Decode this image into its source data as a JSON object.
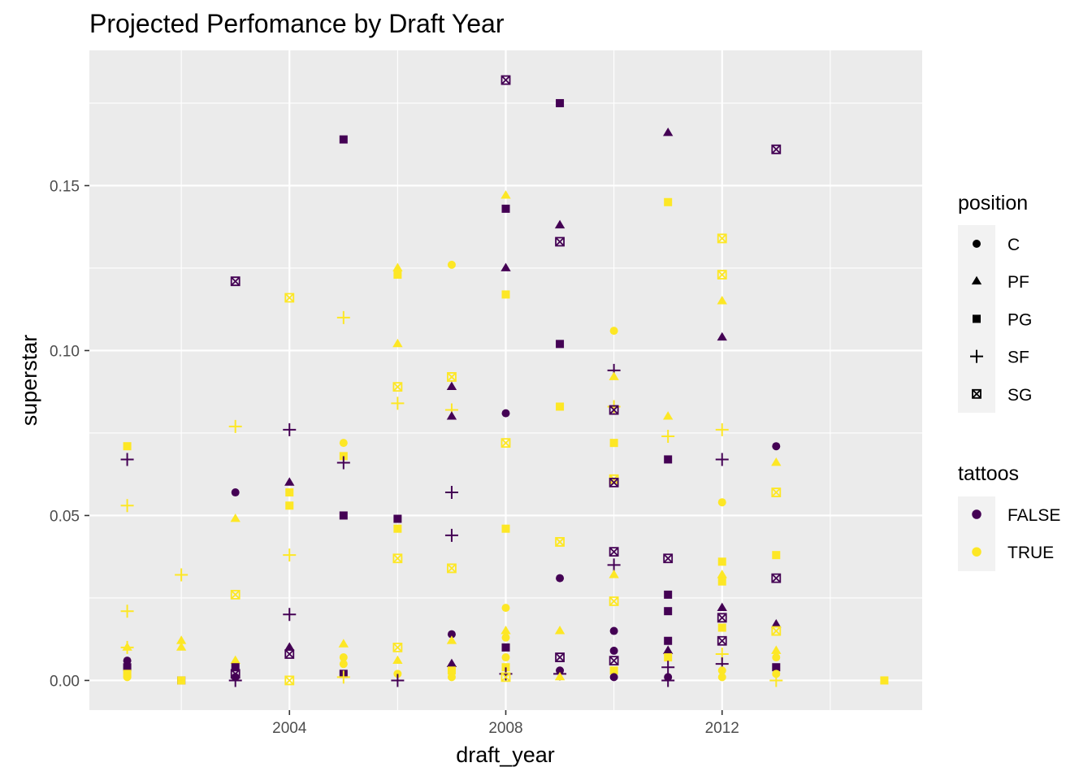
{
  "chart_data": {
    "type": "scatter",
    "title": "Projected Perfomance by Draft Year",
    "xlabel": "draft_year",
    "ylabel": "superstar",
    "xlim": [
      2000.3,
      2015.7
    ],
    "ylim": [
      -0.009,
      0.191
    ],
    "x_ticks": [
      2004,
      2008,
      2012
    ],
    "x_tick_labels": [
      "2004",
      "2008",
      "2012"
    ],
    "x_minor_ticks": [
      2002,
      2006,
      2010,
      2014
    ],
    "y_ticks": [
      0.0,
      0.05,
      0.1,
      0.15
    ],
    "y_tick_labels": [
      "0.00",
      "0.05",
      "0.10",
      "0.15"
    ],
    "y_minor_ticks": [
      0.025,
      0.075,
      0.125,
      0.175
    ],
    "grid": true,
    "background": "#ebebeb",
    "legends": [
      {
        "title": "position",
        "placement": "right",
        "items": [
          {
            "label": "C",
            "shape": "circle"
          },
          {
            "label": "PF",
            "shape": "triangle"
          },
          {
            "label": "PG",
            "shape": "square"
          },
          {
            "label": "SF",
            "shape": "plus"
          },
          {
            "label": "SG",
            "shape": "square-x"
          }
        ]
      },
      {
        "title": "tattoos",
        "placement": "right",
        "items": [
          {
            "label": "FALSE",
            "color": "#440154"
          },
          {
            "label": "TRUE",
            "color": "#fde725"
          }
        ]
      }
    ],
    "colors": {
      "FALSE": "#440154",
      "TRUE": "#fde725"
    },
    "points": [
      [
        2001,
        0.071,
        "PG",
        "TRUE"
      ],
      [
        2001,
        0.067,
        "SF",
        "FALSE"
      ],
      [
        2001,
        0.053,
        "SF",
        "TRUE"
      ],
      [
        2001,
        0.021,
        "SF",
        "TRUE"
      ],
      [
        2001,
        0.01,
        "PF",
        "TRUE"
      ],
      [
        2001,
        0.01,
        "SF",
        "TRUE"
      ],
      [
        2001,
        0.006,
        "C",
        "FALSE"
      ],
      [
        2001,
        0.004,
        "PG",
        "FALSE"
      ],
      [
        2001,
        0.002,
        "PG",
        "TRUE"
      ],
      [
        2001,
        0.001,
        "C",
        "TRUE"
      ],
      [
        2002,
        0.032,
        "SF",
        "TRUE"
      ],
      [
        2002,
        0.012,
        "PF",
        "TRUE"
      ],
      [
        2002,
        0.01,
        "PF",
        "TRUE"
      ],
      [
        2002,
        0.0,
        "PG",
        "FALSE"
      ],
      [
        2002,
        0.0,
        "PG",
        "TRUE"
      ],
      [
        2003,
        0.121,
        "SG",
        "FALSE"
      ],
      [
        2003,
        0.077,
        "SF",
        "TRUE"
      ],
      [
        2003,
        0.057,
        "C",
        "FALSE"
      ],
      [
        2003,
        0.049,
        "PF",
        "TRUE"
      ],
      [
        2003,
        0.026,
        "SG",
        "TRUE"
      ],
      [
        2003,
        0.006,
        "PF",
        "TRUE"
      ],
      [
        2003,
        0.004,
        "PG",
        "FALSE"
      ],
      [
        2003,
        0.002,
        "SG",
        "FALSE"
      ],
      [
        2003,
        0.001,
        "C",
        "FALSE"
      ],
      [
        2003,
        0.0,
        "SF",
        "FALSE"
      ],
      [
        2004,
        0.116,
        "SG",
        "TRUE"
      ],
      [
        2004,
        0.076,
        "SF",
        "FALSE"
      ],
      [
        2004,
        0.06,
        "PF",
        "FALSE"
      ],
      [
        2004,
        0.057,
        "PG",
        "TRUE"
      ],
      [
        2004,
        0.053,
        "PG",
        "TRUE"
      ],
      [
        2004,
        0.038,
        "SF",
        "TRUE"
      ],
      [
        2004,
        0.02,
        "SF",
        "FALSE"
      ],
      [
        2004,
        0.01,
        "PF",
        "FALSE"
      ],
      [
        2004,
        0.008,
        "SG",
        "FALSE"
      ],
      [
        2004,
        0.0,
        "SG",
        "TRUE"
      ],
      [
        2005,
        0.164,
        "PG",
        "FALSE"
      ],
      [
        2005,
        0.11,
        "SF",
        "TRUE"
      ],
      [
        2005,
        0.072,
        "C",
        "TRUE"
      ],
      [
        2005,
        0.068,
        "PG",
        "TRUE"
      ],
      [
        2005,
        0.066,
        "SF",
        "FALSE"
      ],
      [
        2005,
        0.05,
        "PG",
        "FALSE"
      ],
      [
        2005,
        0.011,
        "PF",
        "TRUE"
      ],
      [
        2005,
        0.007,
        "C",
        "TRUE"
      ],
      [
        2005,
        0.005,
        "C",
        "TRUE"
      ],
      [
        2005,
        0.002,
        "PG",
        "FALSE"
      ],
      [
        2005,
        0.001,
        "SF",
        "TRUE"
      ],
      [
        2006,
        0.125,
        "PF",
        "TRUE"
      ],
      [
        2006,
        0.123,
        "PG",
        "TRUE"
      ],
      [
        2006,
        0.102,
        "PF",
        "TRUE"
      ],
      [
        2006,
        0.089,
        "SG",
        "TRUE"
      ],
      [
        2006,
        0.084,
        "SF",
        "TRUE"
      ],
      [
        2006,
        0.049,
        "PG",
        "FALSE"
      ],
      [
        2006,
        0.046,
        "PG",
        "TRUE"
      ],
      [
        2006,
        0.037,
        "SG",
        "TRUE"
      ],
      [
        2006,
        0.01,
        "SG",
        "TRUE"
      ],
      [
        2006,
        0.006,
        "PF",
        "TRUE"
      ],
      [
        2006,
        0.002,
        "C",
        "TRUE"
      ],
      [
        2006,
        0.0,
        "SF",
        "FALSE"
      ],
      [
        2007,
        0.126,
        "C",
        "TRUE"
      ],
      [
        2007,
        0.092,
        "SG",
        "TRUE"
      ],
      [
        2007,
        0.089,
        "PF",
        "FALSE"
      ],
      [
        2007,
        0.082,
        "SF",
        "TRUE"
      ],
      [
        2007,
        0.08,
        "PF",
        "FALSE"
      ],
      [
        2007,
        0.057,
        "SF",
        "FALSE"
      ],
      [
        2007,
        0.044,
        "SF",
        "FALSE"
      ],
      [
        2007,
        0.034,
        "SG",
        "TRUE"
      ],
      [
        2007,
        0.014,
        "C",
        "FALSE"
      ],
      [
        2007,
        0.012,
        "PF",
        "TRUE"
      ],
      [
        2007,
        0.005,
        "PF",
        "FALSE"
      ],
      [
        2007,
        0.003,
        "PG",
        "TRUE"
      ],
      [
        2007,
        0.001,
        "C",
        "TRUE"
      ],
      [
        2008,
        0.182,
        "SG",
        "FALSE"
      ],
      [
        2008,
        0.147,
        "PF",
        "TRUE"
      ],
      [
        2008,
        0.143,
        "PG",
        "FALSE"
      ],
      [
        2008,
        0.125,
        "PF",
        "FALSE"
      ],
      [
        2008,
        0.117,
        "PG",
        "TRUE"
      ],
      [
        2008,
        0.081,
        "C",
        "FALSE"
      ],
      [
        2008,
        0.072,
        "SG",
        "TRUE"
      ],
      [
        2008,
        0.046,
        "PG",
        "TRUE"
      ],
      [
        2008,
        0.022,
        "C",
        "TRUE"
      ],
      [
        2008,
        0.015,
        "PF",
        "TRUE"
      ],
      [
        2008,
        0.013,
        "C",
        "TRUE"
      ],
      [
        2008,
        0.01,
        "PG",
        "FALSE"
      ],
      [
        2008,
        0.007,
        "C",
        "TRUE"
      ],
      [
        2008,
        0.004,
        "PG",
        "TRUE"
      ],
      [
        2008,
        0.002,
        "SF",
        "FALSE"
      ],
      [
        2008,
        0.001,
        "SG",
        "TRUE"
      ],
      [
        2009,
        0.175,
        "PG",
        "FALSE"
      ],
      [
        2009,
        0.138,
        "PF",
        "FALSE"
      ],
      [
        2009,
        0.133,
        "SG",
        "FALSE"
      ],
      [
        2009,
        0.102,
        "PG",
        "FALSE"
      ],
      [
        2009,
        0.083,
        "PG",
        "TRUE"
      ],
      [
        2009,
        0.042,
        "SG",
        "TRUE"
      ],
      [
        2009,
        0.031,
        "C",
        "FALSE"
      ],
      [
        2009,
        0.015,
        "PF",
        "TRUE"
      ],
      [
        2009,
        0.007,
        "SG",
        "FALSE"
      ],
      [
        2009,
        0.003,
        "C",
        "FALSE"
      ],
      [
        2009,
        0.002,
        "SF",
        "FALSE"
      ],
      [
        2009,
        0.001,
        "PF",
        "TRUE"
      ],
      [
        2010,
        0.106,
        "C",
        "TRUE"
      ],
      [
        2010,
        0.094,
        "SF",
        "FALSE"
      ],
      [
        2010,
        0.092,
        "PF",
        "TRUE"
      ],
      [
        2010,
        0.083,
        "SF",
        "TRUE"
      ],
      [
        2010,
        0.082,
        "SG",
        "FALSE"
      ],
      [
        2010,
        0.072,
        "PG",
        "TRUE"
      ],
      [
        2010,
        0.061,
        "SG",
        "TRUE"
      ],
      [
        2010,
        0.06,
        "SG",
        "FALSE"
      ],
      [
        2010,
        0.039,
        "SG",
        "FALSE"
      ],
      [
        2010,
        0.035,
        "SF",
        "FALSE"
      ],
      [
        2010,
        0.032,
        "PF",
        "TRUE"
      ],
      [
        2010,
        0.024,
        "SG",
        "TRUE"
      ],
      [
        2010,
        0.015,
        "C",
        "FALSE"
      ],
      [
        2010,
        0.009,
        "C",
        "FALSE"
      ],
      [
        2010,
        0.006,
        "SG",
        "FALSE"
      ],
      [
        2010,
        0.003,
        "PG",
        "TRUE"
      ],
      [
        2010,
        0.001,
        "C",
        "FALSE"
      ],
      [
        2011,
        0.166,
        "PF",
        "FALSE"
      ],
      [
        2011,
        0.145,
        "PG",
        "TRUE"
      ],
      [
        2011,
        0.08,
        "PF",
        "TRUE"
      ],
      [
        2011,
        0.074,
        "SF",
        "TRUE"
      ],
      [
        2011,
        0.067,
        "PG",
        "FALSE"
      ],
      [
        2011,
        0.037,
        "SG",
        "FALSE"
      ],
      [
        2011,
        0.026,
        "PG",
        "FALSE"
      ],
      [
        2011,
        0.021,
        "PG",
        "FALSE"
      ],
      [
        2011,
        0.012,
        "PG",
        "FALSE"
      ],
      [
        2011,
        0.009,
        "PF",
        "FALSE"
      ],
      [
        2011,
        0.007,
        "PG",
        "TRUE"
      ],
      [
        2011,
        0.004,
        "SF",
        "FALSE"
      ],
      [
        2011,
        0.001,
        "C",
        "FALSE"
      ],
      [
        2011,
        0.0,
        "SF",
        "FALSE"
      ],
      [
        2012,
        0.134,
        "SG",
        "TRUE"
      ],
      [
        2012,
        0.123,
        "SG",
        "TRUE"
      ],
      [
        2012,
        0.115,
        "PF",
        "TRUE"
      ],
      [
        2012,
        0.104,
        "PF",
        "FALSE"
      ],
      [
        2012,
        0.076,
        "SF",
        "TRUE"
      ],
      [
        2012,
        0.067,
        "SF",
        "FALSE"
      ],
      [
        2012,
        0.054,
        "C",
        "TRUE"
      ],
      [
        2012,
        0.036,
        "PG",
        "TRUE"
      ],
      [
        2012,
        0.032,
        "PF",
        "TRUE"
      ],
      [
        2012,
        0.03,
        "PG",
        "TRUE"
      ],
      [
        2012,
        0.022,
        "PF",
        "FALSE"
      ],
      [
        2012,
        0.019,
        "SG",
        "FALSE"
      ],
      [
        2012,
        0.016,
        "PG",
        "TRUE"
      ],
      [
        2012,
        0.012,
        "SG",
        "FALSE"
      ],
      [
        2012,
        0.008,
        "SF",
        "TRUE"
      ],
      [
        2012,
        0.005,
        "SF",
        "FALSE"
      ],
      [
        2012,
        0.003,
        "C",
        "TRUE"
      ],
      [
        2012,
        0.001,
        "C",
        "TRUE"
      ],
      [
        2013,
        0.161,
        "SG",
        "FALSE"
      ],
      [
        2013,
        0.071,
        "C",
        "FALSE"
      ],
      [
        2013,
        0.066,
        "PF",
        "TRUE"
      ],
      [
        2013,
        0.057,
        "SG",
        "TRUE"
      ],
      [
        2013,
        0.038,
        "PG",
        "TRUE"
      ],
      [
        2013,
        0.031,
        "SG",
        "FALSE"
      ],
      [
        2013,
        0.017,
        "PF",
        "FALSE"
      ],
      [
        2013,
        0.015,
        "SG",
        "TRUE"
      ],
      [
        2013,
        0.009,
        "PF",
        "TRUE"
      ],
      [
        2013,
        0.007,
        "C",
        "TRUE"
      ],
      [
        2013,
        0.004,
        "PG",
        "FALSE"
      ],
      [
        2013,
        0.002,
        "C",
        "TRUE"
      ],
      [
        2013,
        0.0,
        "SF",
        "TRUE"
      ],
      [
        2015,
        0.0,
        "PG",
        "TRUE"
      ]
    ]
  }
}
